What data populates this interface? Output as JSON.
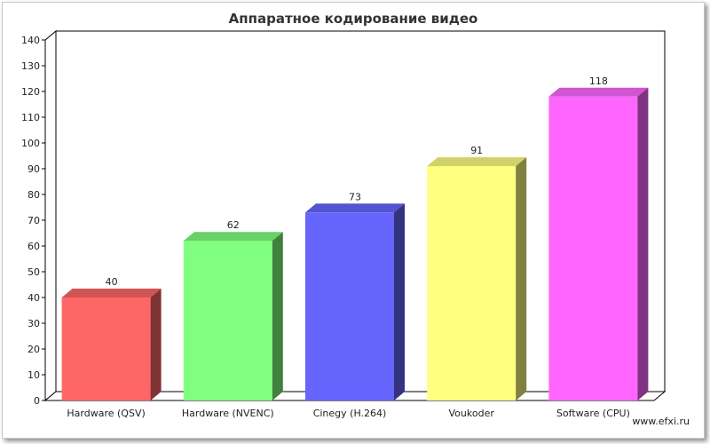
{
  "chart_data": {
    "type": "bar",
    "title": "Аппаратное кодирование видео",
    "categories": [
      "Hardware (QSV)",
      "Hardware (NVENC)",
      "Cinegy (H.264)",
      "Voukoder",
      "Software (CPU)"
    ],
    "values": [
      40,
      62,
      73,
      91,
      118
    ],
    "colors": [
      "#ff6666",
      "#80ff80",
      "#6666ff",
      "#ffff80",
      "#ff66ff"
    ],
    "ylim": [
      0,
      140
    ],
    "yticks": [
      0,
      10,
      20,
      30,
      40,
      50,
      60,
      70,
      80,
      90,
      100,
      110,
      120,
      130,
      140
    ],
    "grid": false,
    "three_d": true,
    "xlabel": "",
    "ylabel": ""
  },
  "watermark": "www.efxi.ru"
}
